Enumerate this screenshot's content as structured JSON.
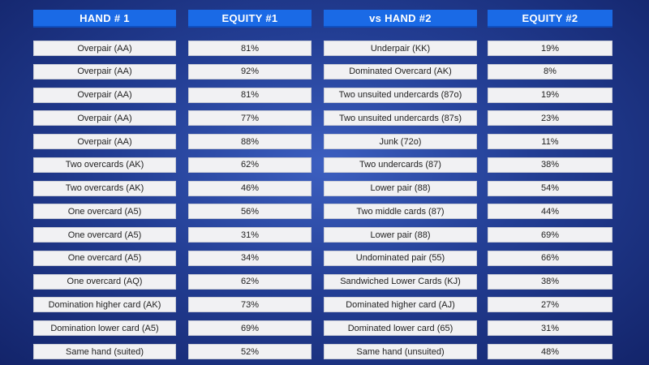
{
  "table": {
    "headers": [
      "HAND # 1",
      "EQUITY #1",
      "vs HAND #2",
      "EQUITY #2"
    ],
    "rows": [
      [
        "Overpair (AA)",
        "81%",
        "Underpair (KK)",
        "19%"
      ],
      [
        "Overpair (AA)",
        "92%",
        "Dominated Overcard (AK)",
        "8%"
      ],
      [
        "Overpair (AA)",
        "81%",
        "Two unsuited undercards (87o)",
        "19%"
      ],
      [
        "Overpair (AA)",
        "77%",
        "Two unsuited undercards (87s)",
        "23%"
      ],
      [
        "Overpair (AA)",
        "88%",
        "Junk (72o)",
        "11%"
      ],
      [
        "Two overcards (AK)",
        "62%",
        "Two undercards (87)",
        "38%"
      ],
      [
        "Two overcards (AK)",
        "46%",
        "Lower pair (88)",
        "54%"
      ],
      [
        "One overcard (A5)",
        "56%",
        "Two middle cards (87)",
        "44%"
      ],
      [
        "One overcard (A5)",
        "31%",
        "Lower pair (88)",
        "69%"
      ],
      [
        "One overcard (A5)",
        "34%",
        "Undominated pair (55)",
        "66%"
      ],
      [
        "One overcard (AQ)",
        "62%",
        "Sandwiched Lower Cards (KJ)",
        "38%"
      ],
      [
        "Domination higher card (AK)",
        "73%",
        "Dominated higher card (AJ)",
        "27%"
      ],
      [
        "Domination lower card (A5)",
        "69%",
        "Dominated lower card (65)",
        "31%"
      ],
      [
        "Same hand (suited)",
        "52%",
        "Same hand (unsuited)",
        "48%"
      ]
    ]
  }
}
